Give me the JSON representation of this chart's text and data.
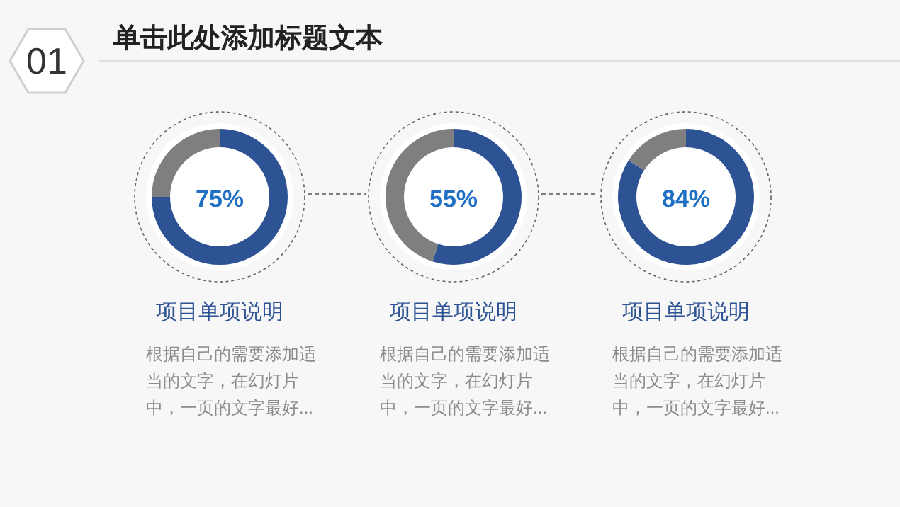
{
  "chart_data": [
    {
      "type": "other",
      "title": "单击此处添加标题文本",
      "annotations": [
        "01"
      ]
    },
    {
      "type": "donut",
      "title": "项目单项说明",
      "categories": [
        null,
        null
      ],
      "values": [
        75,
        25
      ],
      "colors": [
        "#2e5395",
        "#7f7f7f"
      ],
      "value_labels": [
        "75%",
        null
      ],
      "annotations": [
        "根据自己的需要添加适当的文字，在幻灯片中，一页的文字最好..."
      ]
    },
    {
      "type": "donut",
      "title": "项目单项说明",
      "categories": [
        null,
        null
      ],
      "values": [
        55,
        45
      ],
      "colors": [
        "#2e5395",
        "#7f7f7f"
      ],
      "value_labels": [
        "55%",
        null
      ],
      "annotations": [
        "根据自己的需要添加适当的文字，在幻灯片中，一页的文字最好..."
      ]
    },
    {
      "type": "donut",
      "title": "项目单项说明",
      "categories": [
        null,
        null
      ],
      "values": [
        84,
        16
      ],
      "colors": [
        "#2e5395",
        "#7f7f7f"
      ],
      "value_labels": [
        "84%",
        null
      ],
      "annotations": [
        "根据自己的需要添加适当的文字，在幻灯片中，一页的文字最好..."
      ]
    }
  ]
}
